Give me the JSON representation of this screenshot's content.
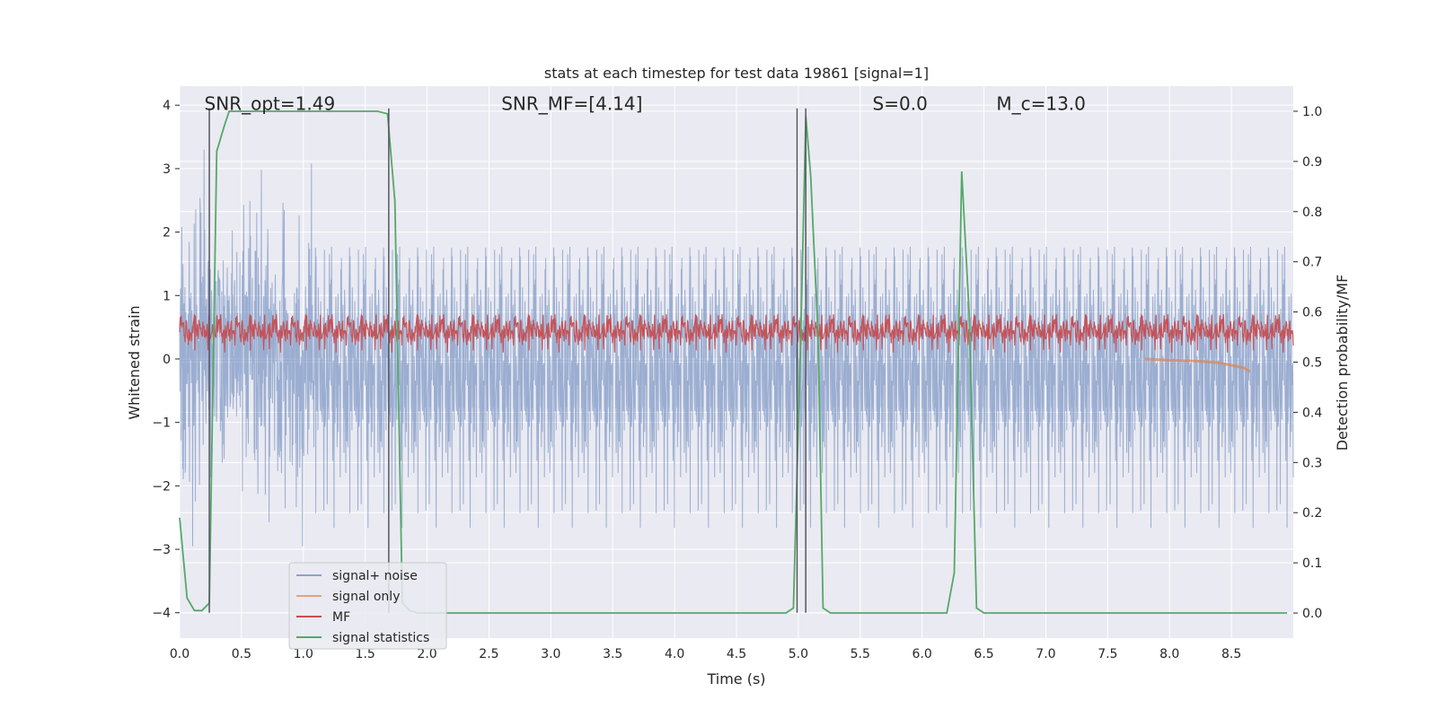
{
  "chart_data": {
    "type": "line",
    "title": "stats at each timestep for test data 19861 [signal=1]",
    "xlabel": "Time (s)",
    "ylabel": "Whitened strain",
    "y2label": "Detection probability/MF",
    "xlim": [
      0.0,
      9.0
    ],
    "ylim": [
      -4.4,
      4.3
    ],
    "y2lim": [
      -0.05,
      1.05
    ],
    "xticks": [
      "0.0",
      "0.5",
      "1.0",
      "1.5",
      "2.0",
      "2.5",
      "3.0",
      "3.5",
      "4.0",
      "4.5",
      "5.0",
      "5.5",
      "6.0",
      "6.5",
      "7.0",
      "7.5",
      "8.0",
      "8.5"
    ],
    "yticks": [
      "4",
      "3",
      "2",
      "1",
      "0",
      "−1",
      "−2",
      "−3",
      "−4"
    ],
    "y2ticks": [
      "1.0",
      "0.9",
      "0.8",
      "0.7",
      "0.6",
      "0.5",
      "0.4",
      "0.3",
      "0.2",
      "0.1",
      "0.0"
    ],
    "grid": true,
    "legend_position": "lower-left",
    "annotations": [
      {
        "text": "SNR_opt=1.49",
        "x": 0.2,
        "y": 3.95
      },
      {
        "text": "SNR_MF=[4.14]",
        "x": 2.6,
        "y": 3.95
      },
      {
        "text": "S=0.0",
        "x": 5.6,
        "y": 3.95
      },
      {
        "text": "M_c=13.0",
        "x": 6.6,
        "y": 3.95
      }
    ],
    "series": [
      {
        "name": "signal+ noise",
        "color": "#4c72b0",
        "axis": "left",
        "style": "dense noise approx. range -3.5 to 3.3, centered near 0"
      },
      {
        "name": "signal only",
        "color": "#dd8452",
        "axis": "left",
        "x": [
          7.8,
          8.0,
          8.2,
          8.4,
          8.5,
          8.6,
          8.65
        ],
        "y": [
          0.0,
          -0.02,
          -0.03,
          -0.06,
          -0.1,
          -0.14,
          -0.2
        ]
      },
      {
        "name": "MF",
        "color": "#c44e52",
        "axis": "right",
        "style": "dense values approx. 0.52 to 0.61"
      },
      {
        "name": "signal statistics",
        "color": "#55a868",
        "axis": "right",
        "x": [
          0.0,
          0.06,
          0.12,
          0.18,
          0.24,
          0.3,
          0.36,
          0.4,
          1.6,
          1.68,
          1.74,
          1.8,
          1.86,
          1.92,
          4.9,
          4.96,
          5.02,
          5.06,
          5.1,
          5.16,
          5.2,
          5.26,
          6.2,
          6.26,
          6.32,
          6.38,
          6.44,
          6.5,
          6.56,
          8.95
        ],
        "y": [
          0.19,
          0.03,
          0.005,
          0.005,
          0.02,
          0.92,
          0.97,
          1.0,
          1.0,
          0.995,
          0.82,
          0.02,
          0.005,
          0.0,
          0.0,
          0.01,
          0.55,
          0.99,
          0.87,
          0.55,
          0.01,
          0.0,
          0.0,
          0.08,
          0.88,
          0.6,
          0.01,
          0.0,
          0.0,
          0.0
        ]
      }
    ],
    "vertical_markers": [
      0.24,
      1.69,
      4.99,
      5.06
    ],
    "legend": [
      "signal+ noise",
      "signal only",
      "MF",
      "signal statistics"
    ]
  }
}
